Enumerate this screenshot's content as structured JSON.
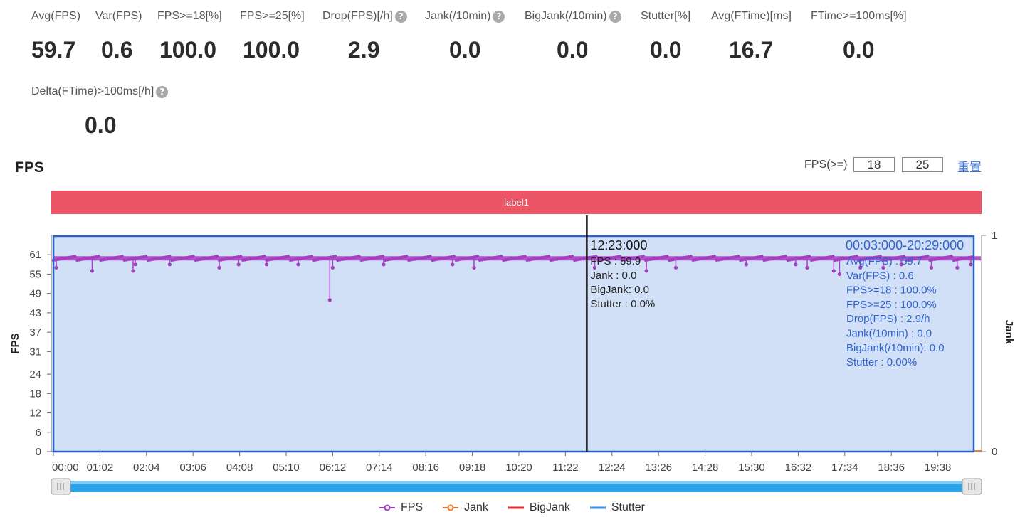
{
  "metrics": [
    {
      "label": "Avg(FPS)",
      "value": "59.7",
      "help": false
    },
    {
      "label": "Var(FPS)",
      "value": "0.6",
      "help": false
    },
    {
      "label": "FPS>=18[%]",
      "value": "100.0",
      "help": false
    },
    {
      "label": "FPS>=25[%]",
      "value": "100.0",
      "help": false
    },
    {
      "label": "Drop(FPS)[/h]",
      "value": "2.9",
      "help": true
    },
    {
      "label": "Jank(/10min)",
      "value": "0.0",
      "help": true
    },
    {
      "label": "BigJank(/10min)",
      "value": "0.0",
      "help": true
    },
    {
      "label": "Stutter[%]",
      "value": "0.0",
      "help": false
    },
    {
      "label": "Avg(FTime)[ms]",
      "value": "16.7",
      "help": false
    },
    {
      "label": "FTime>=100ms[%]",
      "value": "0.0",
      "help": false
    },
    {
      "label": "Delta(FTime)>100ms[/h]",
      "value": "0.0",
      "help": true
    }
  ],
  "help_glyph": "?",
  "chart_header": {
    "title": "FPS",
    "threshold_label": "FPS(>=)",
    "threshold_low": "18",
    "threshold_high": "25",
    "reset_label": "重置"
  },
  "label_bar": {
    "text": "label1",
    "color": "#ec5566"
  },
  "chart_data": {
    "type": "line",
    "ylabel": "FPS",
    "y2label": "Jank",
    "y_ticks": [
      0,
      6,
      12,
      18,
      24,
      31,
      37,
      43,
      49,
      55,
      61
    ],
    "y2_ticks": [
      0,
      1
    ],
    "ylim": [
      0,
      67
    ],
    "x_ticks": [
      "00:00",
      "01:02",
      "02:04",
      "03:06",
      "04:08",
      "05:10",
      "06:12",
      "07:14",
      "08:16",
      "09:18",
      "10:20",
      "11:22",
      "12:24",
      "13:26",
      "14:28",
      "15:30",
      "16:32",
      "17:34",
      "18:36",
      "19:38"
    ],
    "x_range_seconds": [
      0,
      1282
    ],
    "baseline_fps": 59.9,
    "series": [
      {
        "name": "FPS",
        "color": "#a43fbf",
        "dips": [
          {
            "t": 4,
            "v": 57
          },
          {
            "t": 54,
            "v": 56
          },
          {
            "t": 111,
            "v": 56
          },
          {
            "t": 114,
            "v": 58
          },
          {
            "t": 162,
            "v": 58
          },
          {
            "t": 231,
            "v": 57
          },
          {
            "t": 258,
            "v": 58
          },
          {
            "t": 297,
            "v": 58
          },
          {
            "t": 341,
            "v": 58
          },
          {
            "t": 385,
            "v": 47
          },
          {
            "t": 389,
            "v": 57
          },
          {
            "t": 460,
            "v": 58
          },
          {
            "t": 556,
            "v": 58
          },
          {
            "t": 586,
            "v": 57
          },
          {
            "t": 754,
            "v": 57
          },
          {
            "t": 826,
            "v": 56
          },
          {
            "t": 867,
            "v": 57
          },
          {
            "t": 965,
            "v": 58
          },
          {
            "t": 1034,
            "v": 58
          },
          {
            "t": 1050,
            "v": 57
          },
          {
            "t": 1087,
            "v": 56
          },
          {
            "t": 1095,
            "v": 55
          },
          {
            "t": 1124,
            "v": 57
          },
          {
            "t": 1156,
            "v": 57
          },
          {
            "t": 1181,
            "v": 58
          },
          {
            "t": 1223,
            "v": 57
          },
          {
            "t": 1259,
            "v": 57
          },
          {
            "t": 1278,
            "v": 58
          }
        ]
      },
      {
        "name": "Jank",
        "color": "#f07a2a"
      },
      {
        "name": "BigJank",
        "color": "#e02a2a"
      },
      {
        "name": "Stutter",
        "color": "#3a8ee6"
      }
    ],
    "cursor": {
      "time": "12:23:000",
      "t": 743,
      "lines": [
        "FPS      : 59.9",
        "Jank     : 0.0",
        "BigJank: 0.0",
        "Stutter : 0.0%"
      ]
    },
    "selection": {
      "range": "00:03:000-20:29:000",
      "lines": [
        "Avg(FPS)        : 59.7",
        "Var(FPS)         : 0.6",
        "FPS>=18         : 100.0%",
        "FPS>=25         : 100.0%",
        "Drop(FPS)       : 2.9/h",
        "Jank(/10min)    : 0.0",
        "BigJank(/10min): 0.0",
        "Stutter           : 0.00%"
      ]
    },
    "fill_color": "#d1e0f7",
    "selection_border": "#2a62c7"
  }
}
